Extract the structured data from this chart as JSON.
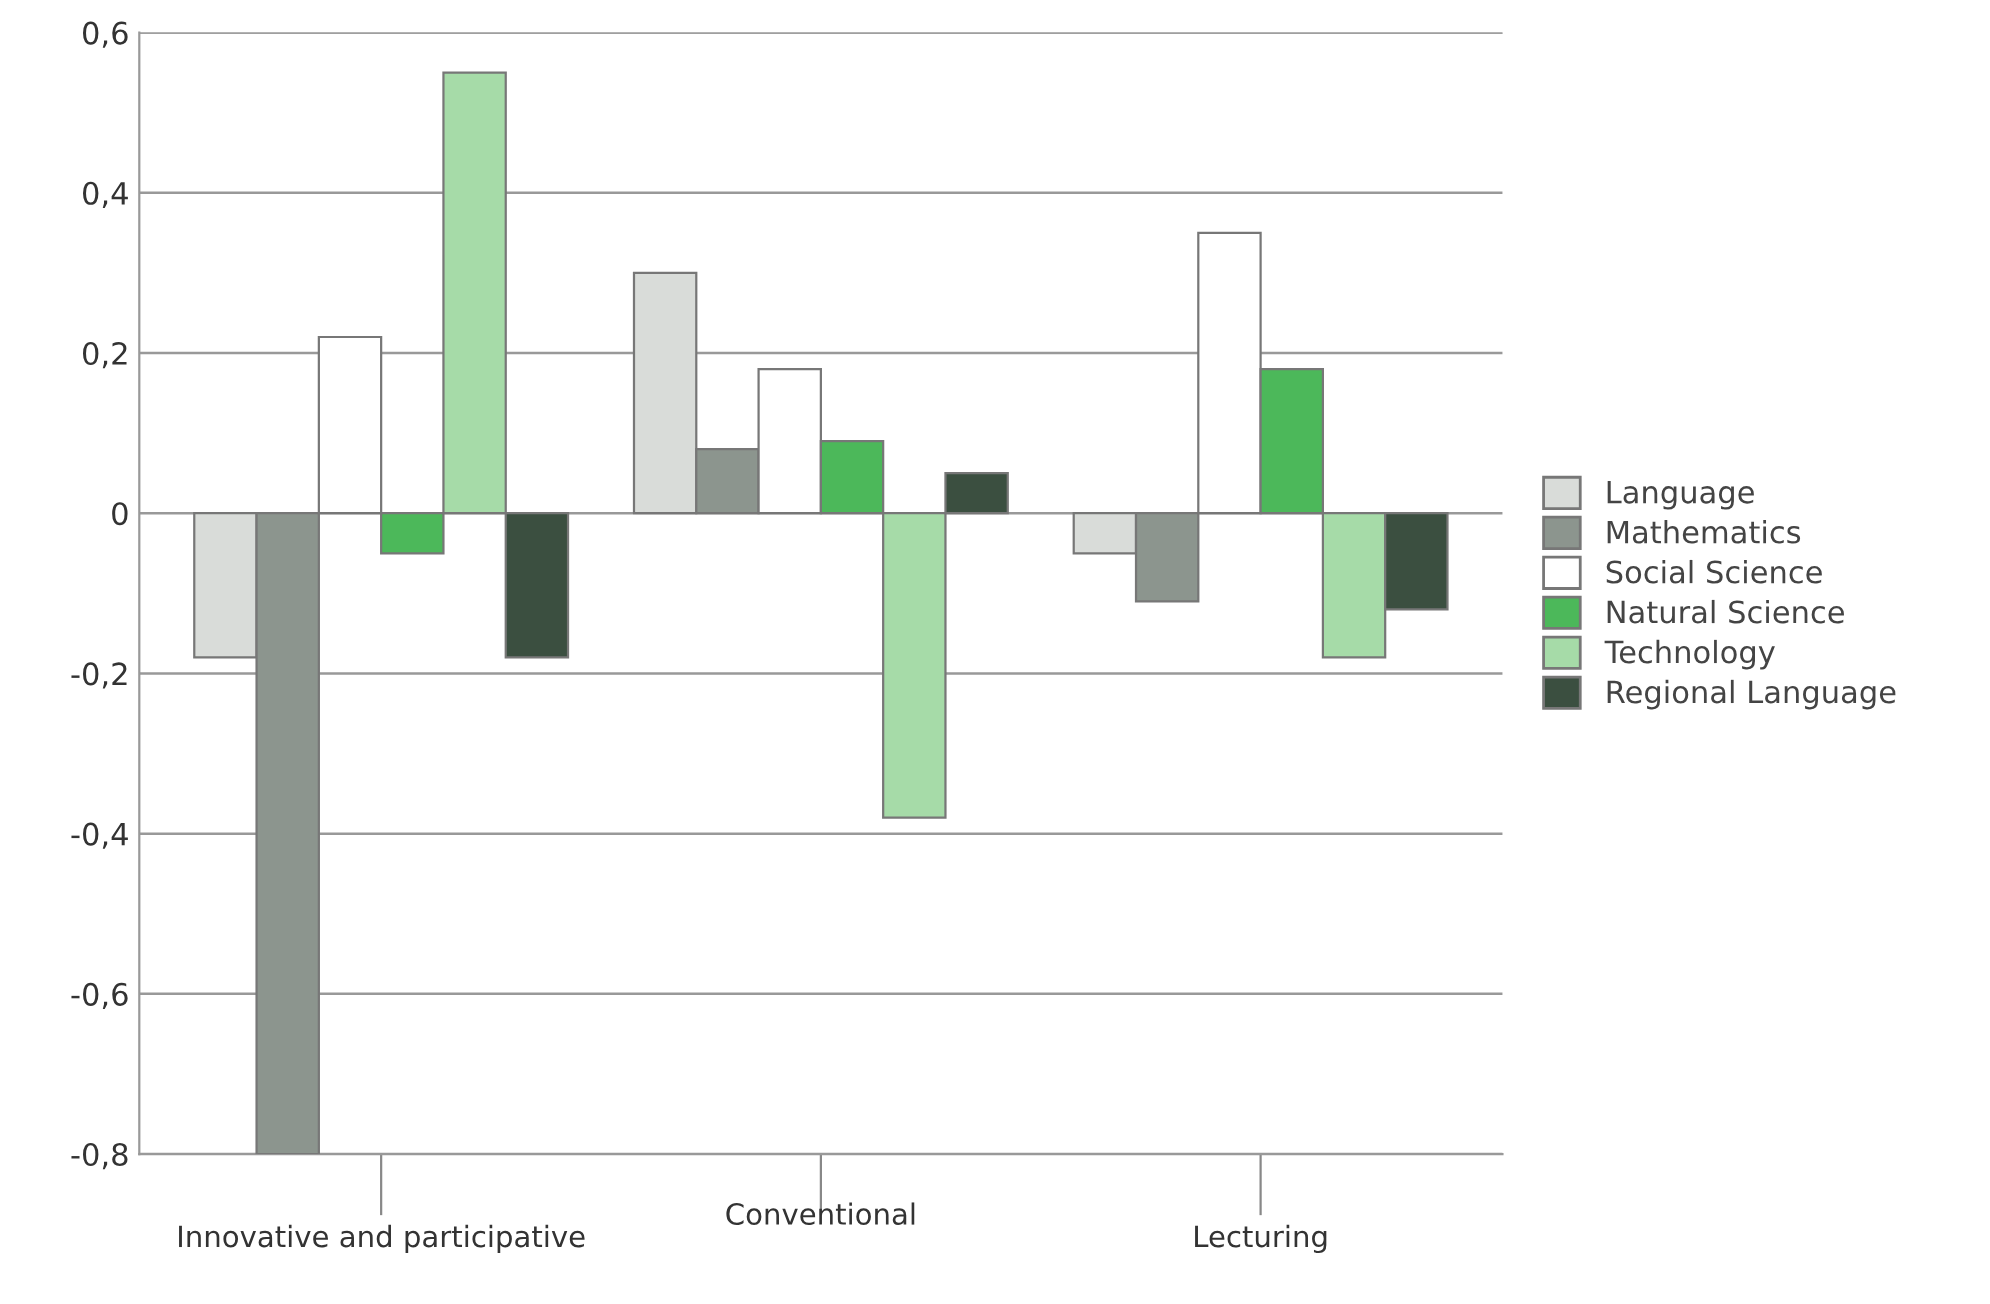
{
  "chart_data": {
    "type": "bar",
    "categories": [
      "Innovative and participative",
      "Conventional",
      "Lecturing"
    ],
    "series": [
      {
        "name": "Language",
        "color": "#d9dcd9",
        "values": [
          -0.18,
          0.3,
          -0.05
        ]
      },
      {
        "name": "Mathematics",
        "color": "#8c958e",
        "values": [
          -0.8,
          0.08,
          -0.11
        ]
      },
      {
        "name": "Social Science",
        "color": "#ffffff",
        "values": [
          0.22,
          0.18,
          0.35
        ]
      },
      {
        "name": "Natural Science",
        "color": "#4cb85a",
        "values": [
          -0.05,
          0.09,
          0.18
        ]
      },
      {
        "name": "Technology",
        "color": "#a6dba8",
        "values": [
          0.55,
          -0.38,
          -0.18
        ]
      },
      {
        "name": "Regional Language",
        "color": "#3b4f40",
        "values": [
          -0.18,
          0.05,
          -0.12
        ]
      }
    ],
    "ylim": [
      -0.8,
      0.6
    ],
    "yticks": [
      {
        "value": -0.8,
        "label": "-0,8"
      },
      {
        "value": -0.6,
        "label": "-0,6"
      },
      {
        "value": -0.4,
        "label": "-0,4"
      },
      {
        "value": -0.2,
        "label": "-0,2"
      },
      {
        "value": 0,
        "label": "0"
      },
      {
        "value": 0.2,
        "label": "0,2"
      },
      {
        "value": 0.4,
        "label": "0,4"
      },
      {
        "value": 0.6,
        "label": "0,6"
      }
    ],
    "grid": "y",
    "legend": "right"
  }
}
